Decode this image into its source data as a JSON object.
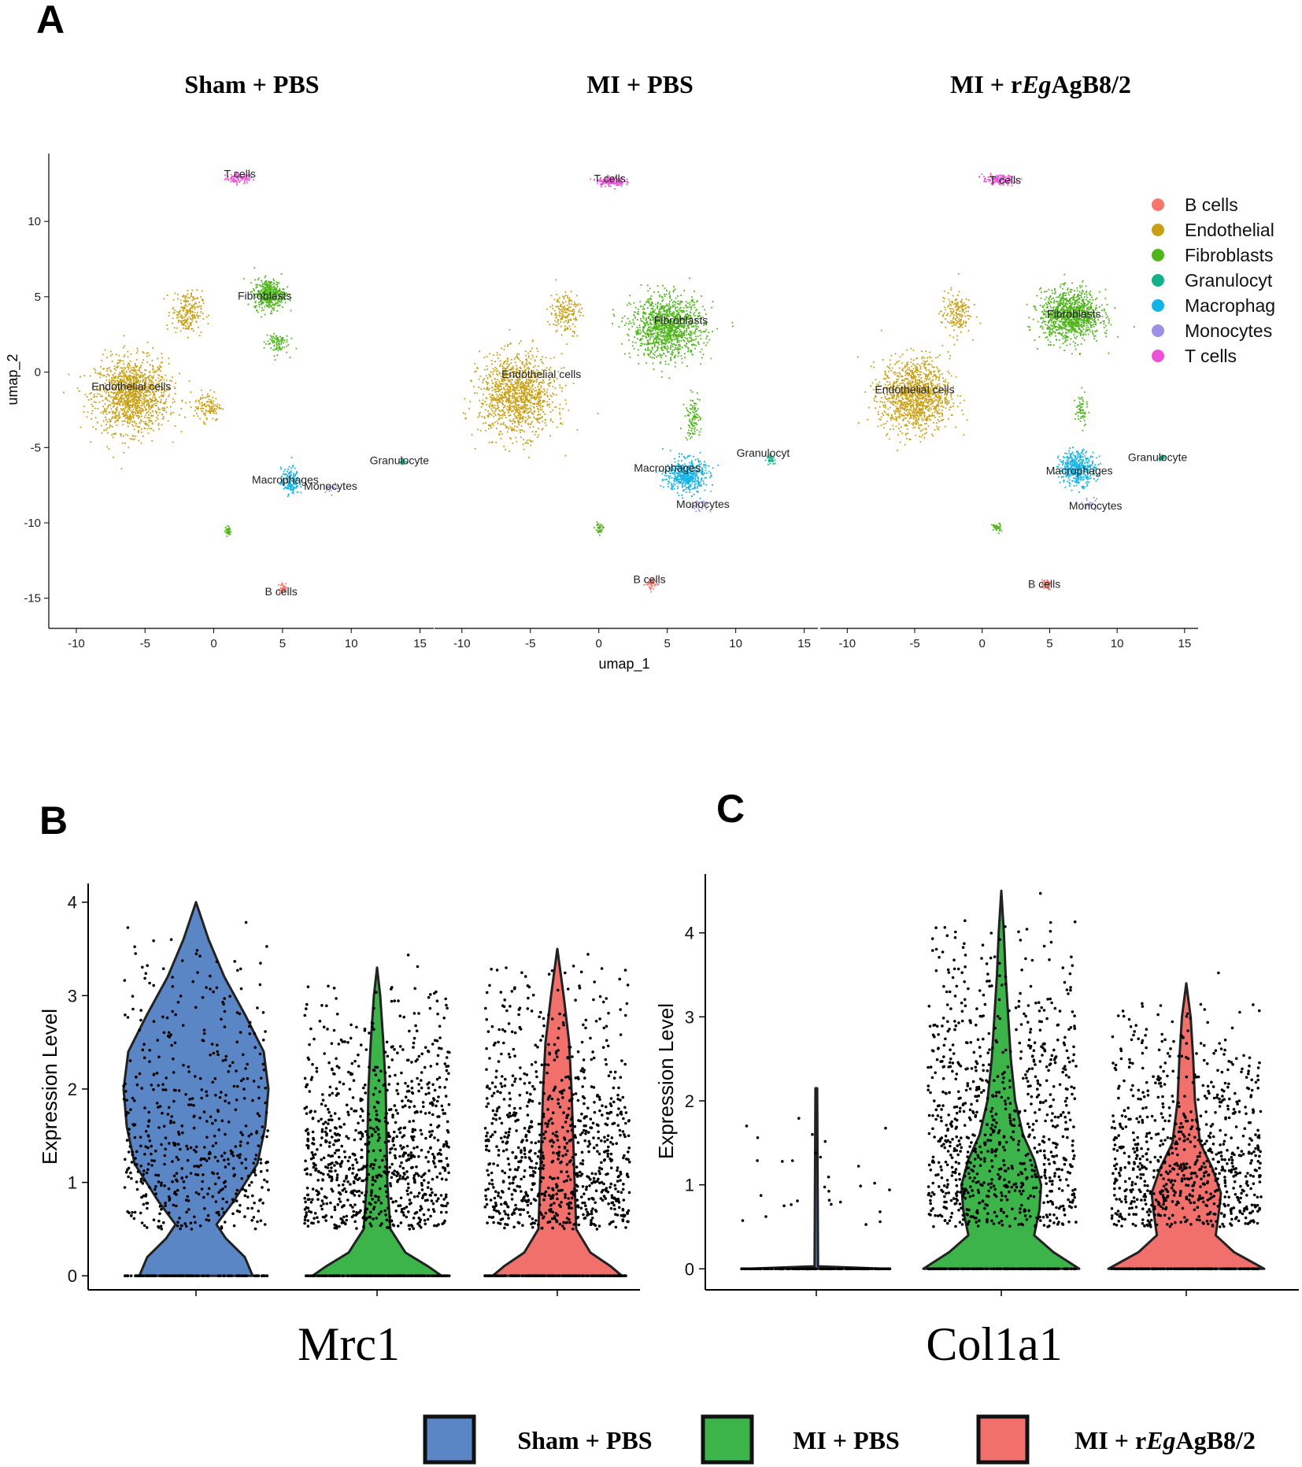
{
  "panel_labels": {
    "a": "A",
    "b": "B",
    "c": "C"
  },
  "colors": {
    "B cells": "#f8766d",
    "Endothelial": "#c9a013",
    "Fibroblasts": "#4fb51b",
    "Granulocyt": "#14b08a",
    "Macrophag": "#13b3e6",
    "Monocytes": "#9d8fe6",
    "T cells": "#ec50d8",
    "sham": "#5b86c6",
    "mi": "#3cb44a",
    "rEg": "#f2706c"
  },
  "chart_data": [
    {
      "type": "scatter",
      "panel": "A",
      "group_titles": [
        {
          "parts": [
            {
              "text": "Sham + PBS",
              "italic": false
            }
          ]
        },
        {
          "parts": [
            {
              "text": "MI + PBS",
              "italic": false
            }
          ]
        },
        {
          "parts": [
            {
              "text": "MI + r",
              "italic": false
            },
            {
              "text": "Eg",
              "italic": true
            },
            {
              "text": "AgB8/2",
              "italic": false
            }
          ]
        }
      ],
      "xlabel": "umap_1",
      "ylabel": "umap_2",
      "xlim": [
        -12,
        16
      ],
      "ylim": [
        -17,
        14.5
      ],
      "xticks": [
        -10,
        -5,
        0,
        5,
        10,
        15
      ],
      "yticks": [
        10,
        5,
        0,
        -5,
        -10,
        -15
      ],
      "grid": false,
      "legend": {
        "position": "right",
        "entries": [
          "B cells",
          "Endothelial",
          "Fibroblasts",
          "Granulocyt",
          "Macrophag",
          "Monocytes",
          "T cells"
        ]
      },
      "facets": [
        {
          "name": "Sham + PBS",
          "clusters": [
            {
              "type": "T cells",
              "cx": 1.8,
              "cy": 12.9,
              "sx": 0.9,
              "sy": 0.3,
              "n": 90
            },
            {
              "type": "Endothelial",
              "cx": -6.0,
              "cy": -1.5,
              "sx": 2.4,
              "sy": 2.2,
              "n": 1300
            },
            {
              "type": "Endothelial",
              "cx": -2.0,
              "cy": 4.0,
              "sx": 1.0,
              "sy": 1.3,
              "n": 220
            },
            {
              "type": "Endothelial",
              "cx": -0.5,
              "cy": -2.2,
              "sx": 0.9,
              "sy": 0.9,
              "n": 120
            },
            {
              "type": "Fibroblasts",
              "cx": 4.0,
              "cy": 5.2,
              "sx": 1.0,
              "sy": 0.9,
              "n": 420
            },
            {
              "type": "Fibroblasts",
              "cx": 4.5,
              "cy": 2.0,
              "sx": 0.8,
              "sy": 0.7,
              "n": 90
            },
            {
              "type": "Fibroblasts",
              "cx": 1.0,
              "cy": -10.5,
              "sx": 0.2,
              "sy": 0.3,
              "n": 35
            },
            {
              "type": "Macrophag",
              "cx": 5.5,
              "cy": -7.2,
              "sx": 0.6,
              "sy": 0.8,
              "n": 160
            },
            {
              "type": "Monocytes",
              "cx": 8.5,
              "cy": -7.6,
              "sx": 0.5,
              "sy": 0.3,
              "n": 20
            },
            {
              "type": "Granulocyt",
              "cx": 13.7,
              "cy": -5.9,
              "sx": 0.2,
              "sy": 0.2,
              "n": 25
            },
            {
              "type": "B cells",
              "cx": 5.0,
              "cy": -14.3,
              "sx": 0.3,
              "sy": 0.3,
              "n": 40
            }
          ],
          "labels": [
            {
              "text": "T cells",
              "x": 1.9,
              "y": 12.9
            },
            {
              "text": "Fibroblasts",
              "x": 3.7,
              "y": 4.8
            },
            {
              "text": "Endothelial cells",
              "x": -6.0,
              "y": -1.2
            },
            {
              "text": "Granulocyte",
              "x": 13.5,
              "y": -6.1
            },
            {
              "text": "Macrophages",
              "x": 5.2,
              "y": -7.4
            },
            {
              "text": "Monocytes",
              "x": 8.5,
              "y": -7.8
            },
            {
              "text": "B cells",
              "x": 4.9,
              "y": -14.8
            }
          ]
        },
        {
          "name": "MI + PBS",
          "clusters": [
            {
              "type": "T cells",
              "cx": 0.8,
              "cy": 12.7,
              "sx": 0.9,
              "sy": 0.3,
              "n": 150
            },
            {
              "type": "Endothelial",
              "cx": -6.0,
              "cy": -1.5,
              "sx": 2.5,
              "sy": 2.4,
              "n": 1200
            },
            {
              "type": "Endothelial",
              "cx": -2.5,
              "cy": 4.0,
              "sx": 1.0,
              "sy": 1.3,
              "n": 180
            },
            {
              "type": "Fibroblasts",
              "cx": 5.0,
              "cy": 3.0,
              "sx": 2.4,
              "sy": 1.8,
              "n": 1200
            },
            {
              "type": "Fibroblasts",
              "cx": 6.8,
              "cy": -3.0,
              "sx": 0.5,
              "sy": 1.3,
              "n": 100
            },
            {
              "type": "Fibroblasts",
              "cx": 0.0,
              "cy": -10.3,
              "sx": 0.3,
              "sy": 0.3,
              "n": 40
            },
            {
              "type": "Macrophag",
              "cx": 6.3,
              "cy": -6.8,
              "sx": 1.3,
              "sy": 1.0,
              "n": 500
            },
            {
              "type": "Monocytes",
              "cx": 7.3,
              "cy": -8.8,
              "sx": 0.8,
              "sy": 0.4,
              "n": 30
            },
            {
              "type": "Granulocyt",
              "cx": 12.5,
              "cy": -5.7,
              "sx": 0.25,
              "sy": 0.25,
              "n": 40
            },
            {
              "type": "B cells",
              "cx": 3.8,
              "cy": -14.0,
              "sx": 0.35,
              "sy": 0.35,
              "n": 60
            }
          ],
          "labels": [
            {
              "text": "T cells",
              "x": 0.8,
              "y": 12.6
            },
            {
              "text": "Fibroblasts",
              "x": 6.0,
              "y": 3.2
            },
            {
              "text": "Endothelial cells",
              "x": -4.2,
              "y": -0.4
            },
            {
              "text": "Granulocyt",
              "x": 12.0,
              "y": -5.6
            },
            {
              "text": "Macrophages",
              "x": 5.0,
              "y": -6.6
            },
            {
              "text": "Monocytes",
              "x": 7.6,
              "y": -9.0
            },
            {
              "text": "B cells",
              "x": 3.7,
              "y": -14.0
            }
          ]
        },
        {
          "name": "MI + rEgAgB8/2",
          "clusters": [
            {
              "type": "T cells",
              "cx": 1.2,
              "cy": 12.8,
              "sx": 1.1,
              "sy": 0.3,
              "n": 130
            },
            {
              "type": "Endothelial",
              "cx": -5.0,
              "cy": -1.5,
              "sx": 2.3,
              "sy": 2.2,
              "n": 1200
            },
            {
              "type": "Endothelial",
              "cx": -2.0,
              "cy": 4.0,
              "sx": 1.0,
              "sy": 1.3,
              "n": 180
            },
            {
              "type": "Fibroblasts",
              "cx": 6.5,
              "cy": 3.8,
              "sx": 2.0,
              "sy": 1.5,
              "n": 1100
            },
            {
              "type": "Fibroblasts",
              "cx": 7.3,
              "cy": -2.5,
              "sx": 0.4,
              "sy": 1.0,
              "n": 60
            },
            {
              "type": "Fibroblasts",
              "cx": 1.0,
              "cy": -10.3,
              "sx": 0.3,
              "sy": 0.3,
              "n": 40
            },
            {
              "type": "Macrophag",
              "cx": 7.0,
              "cy": -6.3,
              "sx": 1.2,
              "sy": 1.0,
              "n": 420
            },
            {
              "type": "Monocytes",
              "cx": 8.0,
              "cy": -8.7,
              "sx": 0.5,
              "sy": 0.4,
              "n": 20
            },
            {
              "type": "Granulocyt",
              "cx": 13.3,
              "cy": -5.6,
              "sx": 0.2,
              "sy": 0.2,
              "n": 25
            },
            {
              "type": "B cells",
              "cx": 4.7,
              "cy": -14.0,
              "sx": 0.3,
              "sy": 0.3,
              "n": 50
            }
          ],
          "labels": [
            {
              "text": "T cells",
              "x": 1.7,
              "y": 12.5
            },
            {
              "text": "Fibroblasts",
              "x": 6.8,
              "y": 3.6
            },
            {
              "text": "Endothelial cells",
              "x": -5.0,
              "y": -1.4
            },
            {
              "text": "Granulocyte",
              "x": 13.0,
              "y": -5.9
            },
            {
              "text": "Macrophages",
              "x": 7.2,
              "y": -6.8
            },
            {
              "text": "Monocytes",
              "x": 8.4,
              "y": -9.1
            },
            {
              "text": "B cells",
              "x": 4.6,
              "y": -14.3
            }
          ]
        }
      ]
    },
    {
      "type": "violin",
      "panel": "B",
      "gene": "Mrc1",
      "ylabel": "Expression Level",
      "ylim": [
        -0.15,
        4.2
      ],
      "yticks": [
        0,
        1,
        2,
        3,
        4
      ],
      "groups": [
        {
          "name": "Sham + PBS",
          "color_key": "sham",
          "max": 4.0,
          "points": 520,
          "zeros": 120,
          "profile": [
            [
              0,
              0.72
            ],
            [
              0.2,
              0.62
            ],
            [
              0.4,
              0.38
            ],
            [
              0.55,
              0.26
            ],
            [
              0.8,
              0.48
            ],
            [
              1.2,
              0.78
            ],
            [
              1.6,
              0.88
            ],
            [
              2.0,
              0.92
            ],
            [
              2.4,
              0.86
            ],
            [
              2.8,
              0.62
            ],
            [
              3.2,
              0.36
            ],
            [
              3.6,
              0.16
            ],
            [
              4.0,
              0.0
            ]
          ]
        },
        {
          "name": "MI + PBS",
          "color_key": "mi",
          "max": 3.3,
          "points": 900,
          "zeros": 180,
          "profile": [
            [
              0,
              0.82
            ],
            [
              0.1,
              0.65
            ],
            [
              0.25,
              0.36
            ],
            [
              0.5,
              0.17
            ],
            [
              1.0,
              0.13
            ],
            [
              1.5,
              0.12
            ],
            [
              2.0,
              0.11
            ],
            [
              2.5,
              0.08
            ],
            [
              3.0,
              0.04
            ],
            [
              3.3,
              0.0
            ]
          ]
        },
        {
          "name": "MI + rEgAgB8/2",
          "color_key": "rEg",
          "max": 3.5,
          "points": 900,
          "zeros": 180,
          "profile": [
            [
              0,
              0.82
            ],
            [
              0.1,
              0.68
            ],
            [
              0.25,
              0.42
            ],
            [
              0.5,
              0.24
            ],
            [
              1.0,
              0.22
            ],
            [
              1.5,
              0.2
            ],
            [
              2.0,
              0.18
            ],
            [
              2.5,
              0.15
            ],
            [
              3.0,
              0.08
            ],
            [
              3.5,
              0.0
            ]
          ]
        }
      ]
    },
    {
      "type": "violin",
      "panel": "C",
      "gene": "Col1a1",
      "ylabel": "Expression Level",
      "ylim": [
        -0.25,
        4.7
      ],
      "yticks": [
        0,
        1,
        2,
        3,
        4
      ],
      "groups": [
        {
          "name": "Sham + PBS",
          "color_key": "sham",
          "max": 2.15,
          "points": 30,
          "zeros": 160,
          "profile": [
            [
              0,
              0.8
            ],
            [
              0.03,
              0.02
            ],
            [
              2.15,
              0.01
            ]
          ]
        },
        {
          "name": "MI + PBS",
          "color_key": "mi",
          "max": 4.5,
          "points": 900,
          "zeros": 160,
          "profile": [
            [
              0,
              0.9
            ],
            [
              0.2,
              0.6
            ],
            [
              0.4,
              0.38
            ],
            [
              0.7,
              0.44
            ],
            [
              1.0,
              0.46
            ],
            [
              1.3,
              0.38
            ],
            [
              1.6,
              0.25
            ],
            [
              2.0,
              0.16
            ],
            [
              2.5,
              0.11
            ],
            [
              3.0,
              0.08
            ],
            [
              3.5,
              0.05
            ],
            [
              4.0,
              0.03
            ],
            [
              4.5,
              0.0
            ]
          ]
        },
        {
          "name": "MI + rEgAgB8/2",
          "color_key": "rEg",
          "max": 3.4,
          "points": 800,
          "zeros": 160,
          "profile": [
            [
              0,
              0.9
            ],
            [
              0.2,
              0.55
            ],
            [
              0.4,
              0.34
            ],
            [
              0.7,
              0.38
            ],
            [
              0.9,
              0.4
            ],
            [
              1.2,
              0.3
            ],
            [
              1.5,
              0.16
            ],
            [
              2.0,
              0.1
            ],
            [
              2.5,
              0.08
            ],
            [
              3.0,
              0.05
            ],
            [
              3.4,
              0.0
            ]
          ]
        }
      ]
    }
  ],
  "bottom_legend": [
    {
      "color_key": "sham",
      "parts": [
        {
          "text": "Sham + PBS",
          "italic": false
        }
      ]
    },
    {
      "color_key": "mi",
      "parts": [
        {
          "text": "MI + PBS",
          "italic": false
        }
      ]
    },
    {
      "color_key": "rEg",
      "parts": [
        {
          "text": "MI + r",
          "italic": false
        },
        {
          "text": "Eg",
          "italic": true
        },
        {
          "text": "AgB8/2",
          "italic": false
        }
      ]
    }
  ]
}
